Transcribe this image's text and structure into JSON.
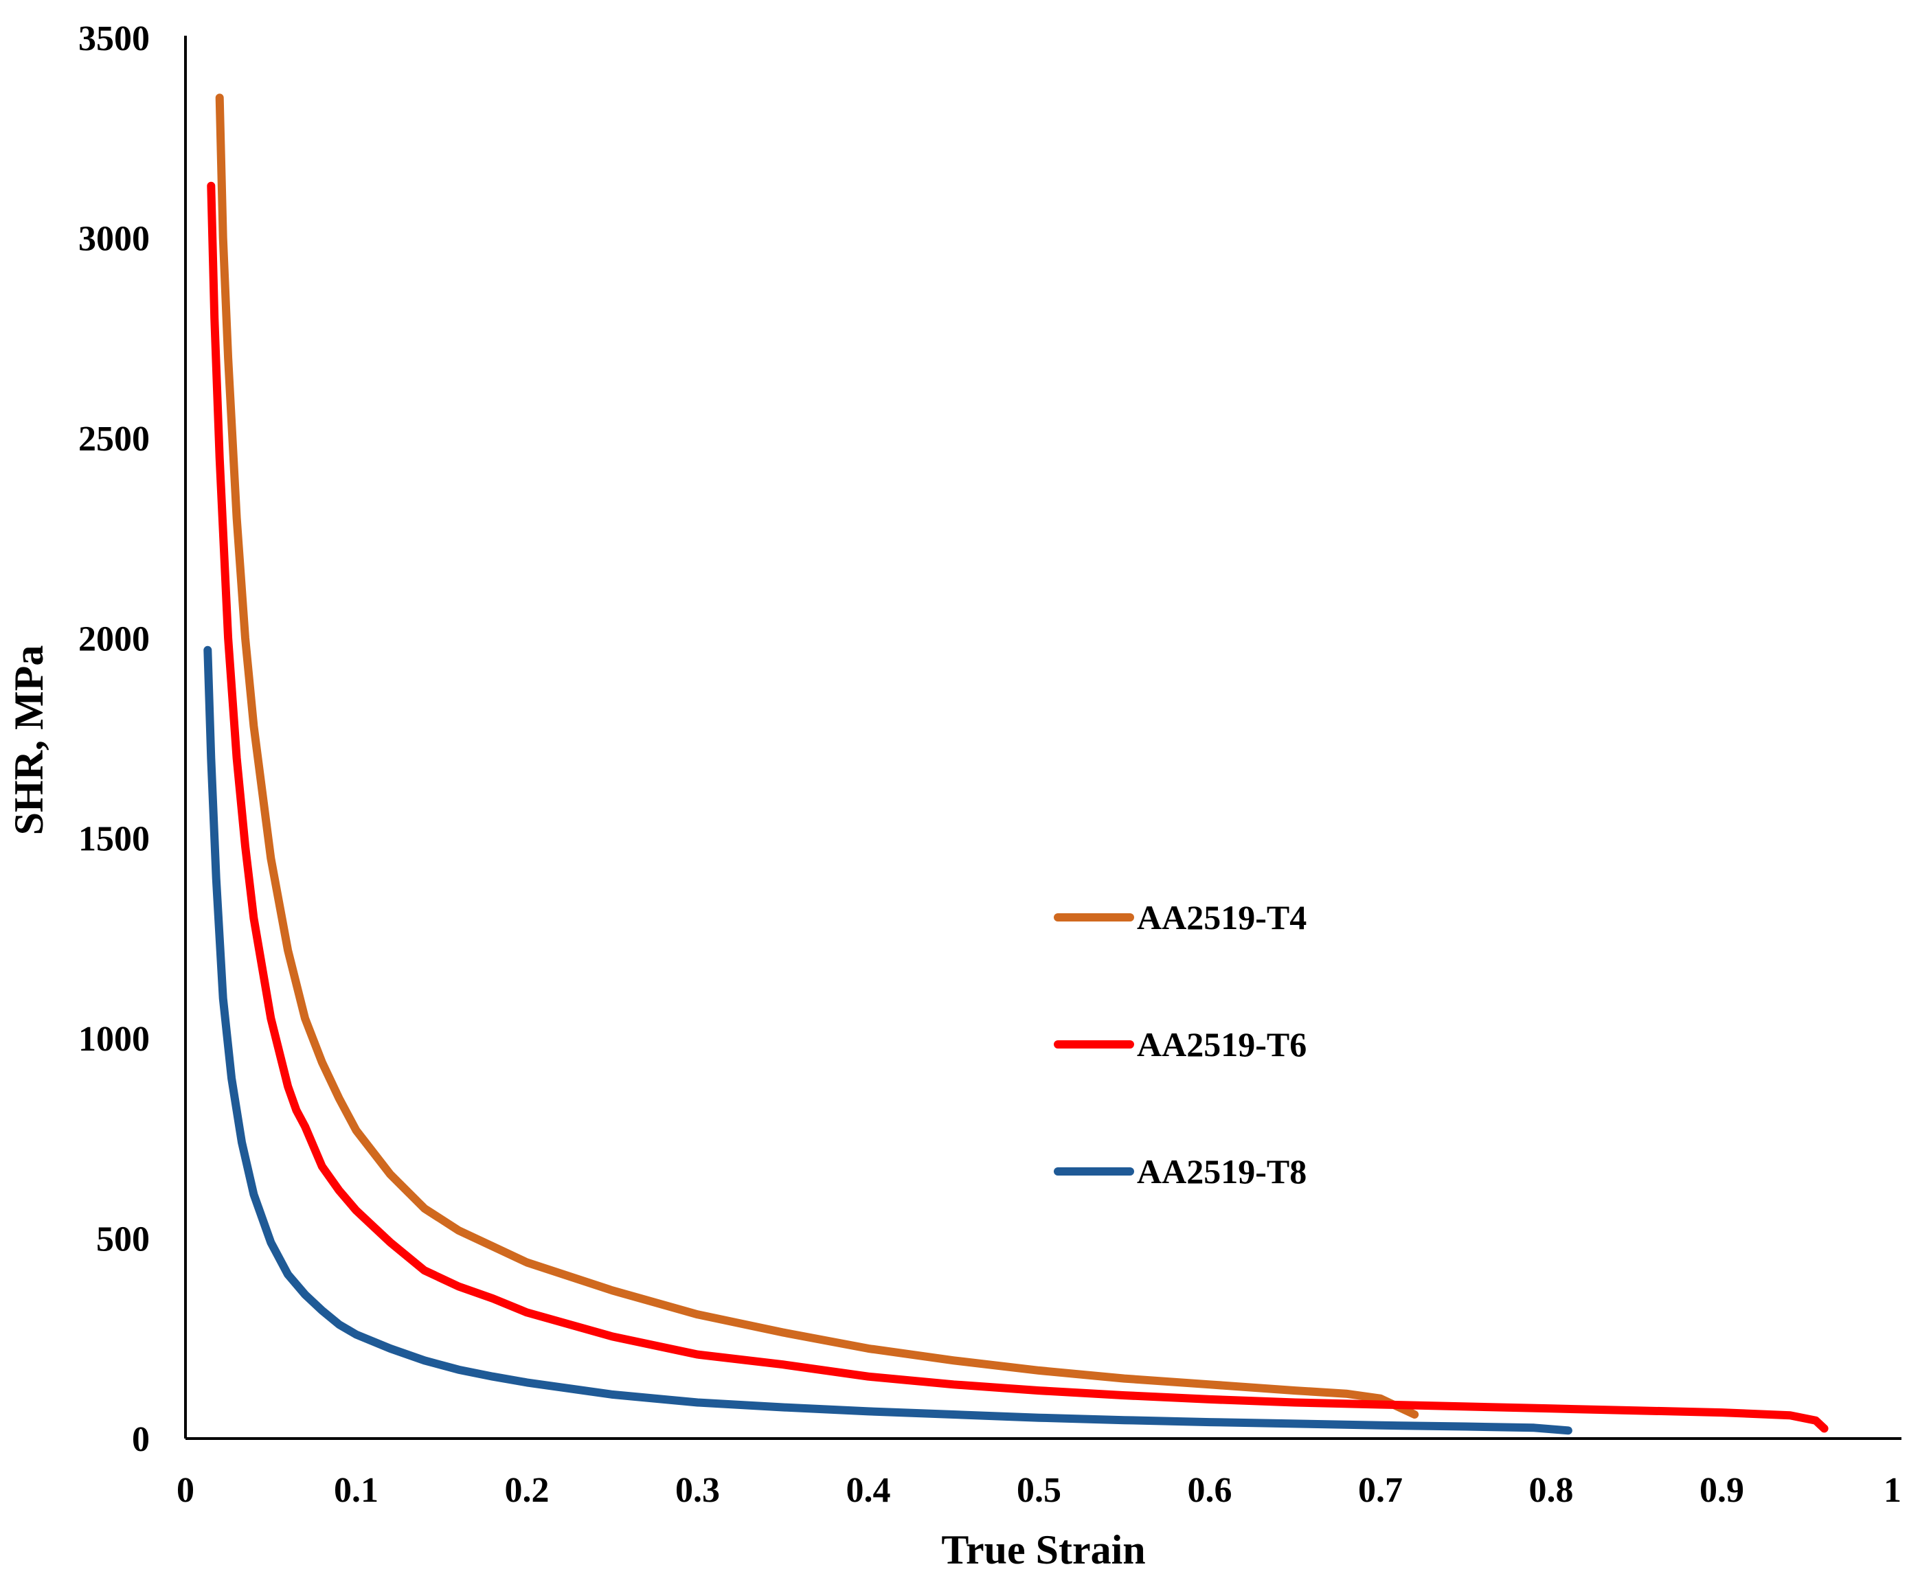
{
  "chart_data": {
    "type": "line",
    "title": "",
    "xlabel": "True Strain",
    "ylabel": "SHR, MPa",
    "xlim": [
      0,
      1
    ],
    "ylim": [
      0,
      3500
    ],
    "xticks": [
      "0",
      "0.1",
      "0.2",
      "0.3",
      "0.4",
      "0.5",
      "0.6",
      "0.7",
      "0.8",
      "0.9",
      "1"
    ],
    "yticks": [
      "0",
      "500",
      "1000",
      "1500",
      "2000",
      "2500",
      "3000",
      "3500"
    ],
    "grid": false,
    "legend_position": "center-right",
    "series": [
      {
        "name": "AA2519-T4",
        "color": "#d0691f",
        "points": [
          [
            0.02,
            3350
          ],
          [
            0.022,
            3000
          ],
          [
            0.025,
            2700
          ],
          [
            0.03,
            2300
          ],
          [
            0.035,
            2000
          ],
          [
            0.04,
            1780
          ],
          [
            0.05,
            1450
          ],
          [
            0.06,
            1220
          ],
          [
            0.07,
            1050
          ],
          [
            0.08,
            940
          ],
          [
            0.09,
            850
          ],
          [
            0.1,
            770
          ],
          [
            0.12,
            660
          ],
          [
            0.14,
            575
          ],
          [
            0.16,
            520
          ],
          [
            0.18,
            480
          ],
          [
            0.2,
            440
          ],
          [
            0.25,
            370
          ],
          [
            0.3,
            310
          ],
          [
            0.35,
            265
          ],
          [
            0.4,
            225
          ],
          [
            0.45,
            195
          ],
          [
            0.5,
            170
          ],
          [
            0.55,
            150
          ],
          [
            0.6,
            135
          ],
          [
            0.65,
            120
          ],
          [
            0.68,
            112
          ],
          [
            0.7,
            100
          ],
          [
            0.72,
            60
          ]
        ]
      },
      {
        "name": "AA2519-T6",
        "color": "#ff0000",
        "points": [
          [
            0.015,
            3130
          ],
          [
            0.017,
            2800
          ],
          [
            0.02,
            2450
          ],
          [
            0.025,
            2000
          ],
          [
            0.03,
            1700
          ],
          [
            0.035,
            1480
          ],
          [
            0.04,
            1300
          ],
          [
            0.05,
            1050
          ],
          [
            0.06,
            880
          ],
          [
            0.065,
            820
          ],
          [
            0.07,
            780
          ],
          [
            0.08,
            680
          ],
          [
            0.09,
            620
          ],
          [
            0.1,
            570
          ],
          [
            0.12,
            490
          ],
          [
            0.14,
            420
          ],
          [
            0.16,
            380
          ],
          [
            0.18,
            350
          ],
          [
            0.2,
            315
          ],
          [
            0.25,
            255
          ],
          [
            0.3,
            210
          ],
          [
            0.35,
            185
          ],
          [
            0.4,
            155
          ],
          [
            0.45,
            135
          ],
          [
            0.5,
            120
          ],
          [
            0.55,
            108
          ],
          [
            0.6,
            98
          ],
          [
            0.65,
            90
          ],
          [
            0.7,
            85
          ],
          [
            0.75,
            80
          ],
          [
            0.8,
            75
          ],
          [
            0.85,
            70
          ],
          [
            0.9,
            65
          ],
          [
            0.94,
            58
          ],
          [
            0.955,
            45
          ],
          [
            0.96,
            25
          ]
        ]
      },
      {
        "name": "AA2519-T8",
        "color": "#1f5a96",
        "points": [
          [
            0.013,
            1970
          ],
          [
            0.015,
            1700
          ],
          [
            0.018,
            1400
          ],
          [
            0.022,
            1100
          ],
          [
            0.027,
            900
          ],
          [
            0.033,
            740
          ],
          [
            0.04,
            610
          ],
          [
            0.05,
            490
          ],
          [
            0.06,
            410
          ],
          [
            0.07,
            360
          ],
          [
            0.08,
            320
          ],
          [
            0.09,
            285
          ],
          [
            0.1,
            260
          ],
          [
            0.12,
            225
          ],
          [
            0.14,
            195
          ],
          [
            0.16,
            172
          ],
          [
            0.18,
            155
          ],
          [
            0.2,
            140
          ],
          [
            0.25,
            110
          ],
          [
            0.3,
            90
          ],
          [
            0.35,
            78
          ],
          [
            0.4,
            68
          ],
          [
            0.45,
            60
          ],
          [
            0.5,
            52
          ],
          [
            0.55,
            46
          ],
          [
            0.6,
            41
          ],
          [
            0.65,
            37
          ],
          [
            0.7,
            33
          ],
          [
            0.75,
            30
          ],
          [
            0.79,
            27
          ],
          [
            0.81,
            20
          ]
        ]
      }
    ]
  }
}
